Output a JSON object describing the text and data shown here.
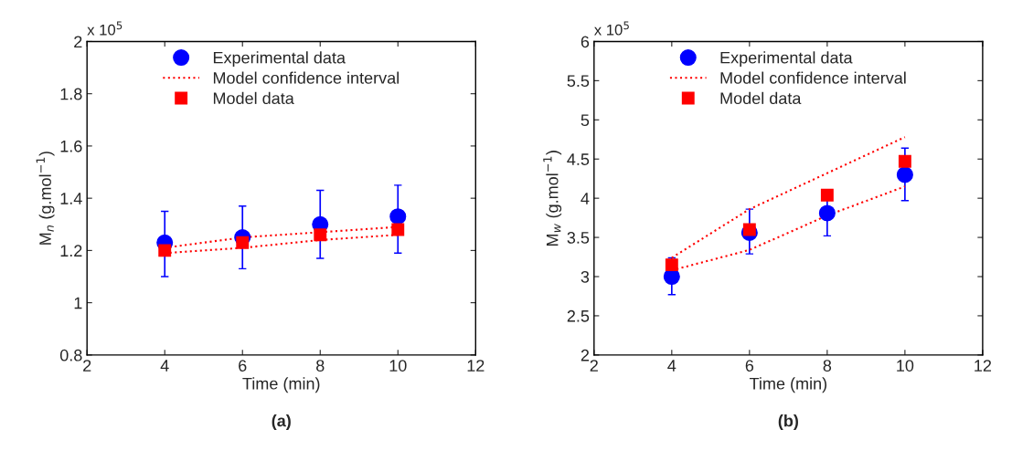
{
  "chart_data": [
    {
      "type": "scatter",
      "title": "(a)",
      "xlabel": "Time (min)",
      "ylabel": "M$_{n}$ (g.mol$^{−1}$)",
      "annotations": [
        "x 10$^{5}$"
      ],
      "xlim": [
        2,
        12
      ],
      "xticks": [
        2,
        4,
        6,
        8,
        10,
        12
      ],
      "ylim": [
        0.8,
        2
      ],
      "yticks": [
        0.8,
        1,
        1.2,
        1.4,
        1.6,
        1.8,
        2
      ],
      "grid": false,
      "legend": "top",
      "series": [
        {
          "name": "Experimental data",
          "type": "scatter",
          "marker": "circle",
          "color": "#0000ff",
          "x": [
            4,
            6,
            8,
            10
          ],
          "values": [
            1.23,
            1.25,
            1.3,
            1.33
          ],
          "errors": [
            [
              1.1,
              1.35
            ],
            [
              1.13,
              1.37
            ],
            [
              1.17,
              1.43
            ],
            [
              1.19,
              1.45
            ]
          ]
        },
        {
          "name": "Model confidence interval",
          "type": "line",
          "line_style": "dotted",
          "color": "#ff0000",
          "x": [
            4,
            6,
            8,
            10
          ],
          "values": [
            1.21,
            1.25,
            1.27,
            1.29
          ]
        },
        {
          "type": "line",
          "line_style": "dotted",
          "color": "#ff0000",
          "x": [
            4,
            6,
            8,
            10
          ],
          "values": [
            1.19,
            1.21,
            1.24,
            1.26
          ]
        },
        {
          "name": "Model data",
          "type": "scatter",
          "marker": "square",
          "color": "#ff0000",
          "x": [
            4,
            6,
            8,
            10
          ],
          "values": [
            1.2,
            1.23,
            1.26,
            1.28
          ]
        }
      ]
    },
    {
      "type": "scatter",
      "title": "(b)",
      "xlabel": "Time (min)",
      "ylabel": "M$_{w}$ (g.mol$^{−1}$)",
      "annotations": [
        "x 10$^{5}$"
      ],
      "xlim": [
        2,
        12
      ],
      "xticks": [
        2,
        4,
        6,
        8,
        10,
        12
      ],
      "ylim": [
        2,
        6
      ],
      "yticks": [
        2,
        2.5,
        3,
        3.5,
        4,
        4.5,
        5,
        5.5,
        6
      ],
      "grid": false,
      "legend": "top",
      "series": [
        {
          "name": "Experimental data",
          "type": "scatter",
          "marker": "circle",
          "color": "#0000ff",
          "x": [
            4,
            6,
            8,
            10
          ],
          "values": [
            3.0,
            3.56,
            3.81,
            4.3
          ],
          "errors": [
            [
              2.77,
              3.24
            ],
            [
              3.29,
              3.86
            ],
            [
              3.52,
              4.1
            ],
            [
              3.97,
              4.64
            ]
          ]
        },
        {
          "name": "Model confidence interval",
          "type": "line",
          "line_style": "dotted",
          "color": "#ff0000",
          "x": [
            4,
            6,
            10
          ],
          "values": [
            3.24,
            3.86,
            4.78
          ]
        },
        {
          "type": "line",
          "line_style": "dotted",
          "color": "#ff0000",
          "x": [
            4,
            6,
            8,
            10
          ],
          "values": [
            3.08,
            3.34,
            3.78,
            4.15
          ]
        },
        {
          "name": "Model data",
          "type": "scatter",
          "marker": "square",
          "color": "#ff0000",
          "x": [
            4,
            6,
            8,
            10
          ],
          "values": [
            3.15,
            3.6,
            4.04,
            4.47
          ]
        }
      ]
    }
  ]
}
